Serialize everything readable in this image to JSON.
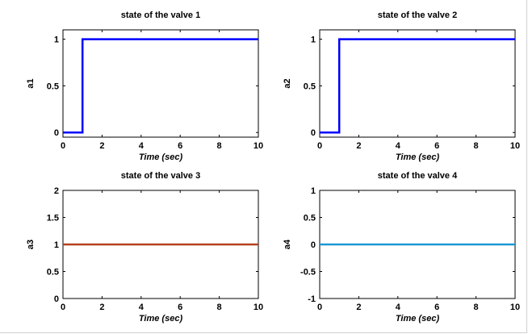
{
  "chart_data": [
    {
      "type": "line",
      "title": "state of the valve  1",
      "xlabel": "Time (sec)",
      "ylabel": "a1",
      "xlim": [
        0,
        10
      ],
      "ylim": [
        -0.05,
        1.1
      ],
      "xticks": [
        "0",
        "2",
        "4",
        "6",
        "8",
        "10"
      ],
      "yticks": [
        "0",
        "0.5",
        "1"
      ],
      "series": [
        {
          "color": "#0000ff",
          "x": [
            0,
            1,
            1,
            10
          ],
          "y": [
            0,
            0,
            1,
            1
          ]
        }
      ]
    },
    {
      "type": "line",
      "title": "state of the valve  2",
      "xlabel": "Time (sec)",
      "ylabel": "a2",
      "xlim": [
        0,
        10
      ],
      "ylim": [
        -0.05,
        1.1
      ],
      "xticks": [
        "0",
        "2",
        "4",
        "6",
        "8",
        "10"
      ],
      "yticks": [
        "0",
        "0.5",
        "1"
      ],
      "series": [
        {
          "color": "#0000ff",
          "x": [
            0,
            1,
            1,
            10
          ],
          "y": [
            0,
            0,
            1,
            1
          ]
        }
      ]
    },
    {
      "type": "line",
      "title": "state of the valve  3",
      "xlabel": "Time (sec)",
      "ylabel": "a3",
      "xlim": [
        0,
        10
      ],
      "ylim": [
        0,
        2
      ],
      "xticks": [
        "0",
        "2",
        "4",
        "6",
        "8",
        "10"
      ],
      "yticks": [
        "0",
        "0.5",
        "1",
        "1.5",
        "2"
      ],
      "series": [
        {
          "color": "#b5401e",
          "x": [
            0,
            10
          ],
          "y": [
            1,
            1
          ]
        }
      ]
    },
    {
      "type": "line",
      "title": "state of the valve  4",
      "xlabel": "Time (sec)",
      "ylabel": "a4",
      "xlim": [
        0,
        10
      ],
      "ylim": [
        -1,
        1
      ],
      "xticks": [
        "0",
        "2",
        "4",
        "6",
        "8",
        "10"
      ],
      "yticks": [
        "-1",
        "-0.5",
        "0",
        "0.5",
        "1"
      ],
      "series": [
        {
          "color": "#1f96d6",
          "x": [
            0,
            10
          ],
          "y": [
            0,
            0
          ]
        }
      ]
    }
  ]
}
